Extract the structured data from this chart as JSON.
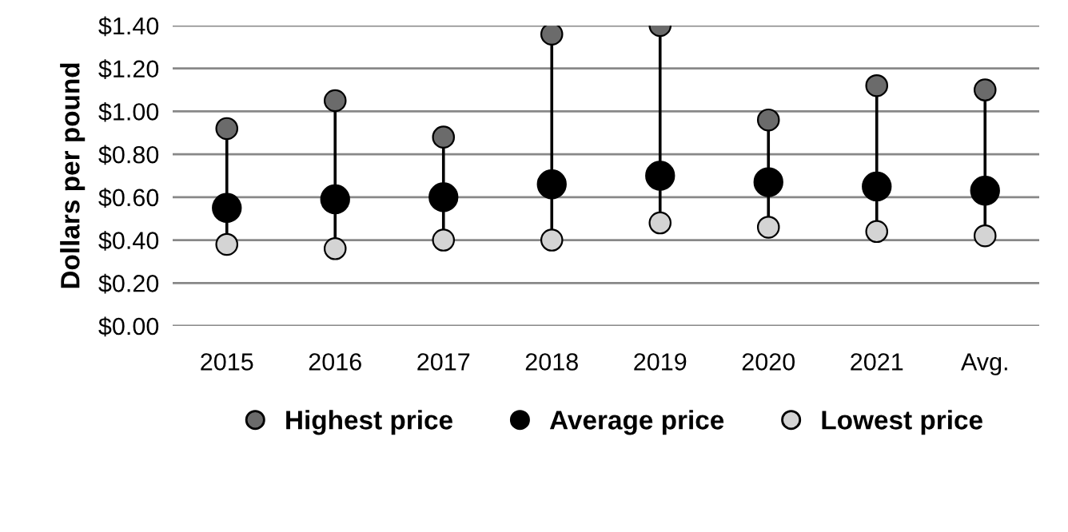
{
  "chart_data": {
    "type": "scatter",
    "ylabel": "Dollars per pound",
    "categories": [
      "2015",
      "2016",
      "2017",
      "2018",
      "2019",
      "2020",
      "2021",
      "Avg."
    ],
    "series": [
      {
        "name": "Highest price",
        "color": "#6b6b6b",
        "values": [
          0.92,
          1.05,
          0.88,
          1.36,
          1.4,
          0.96,
          1.12,
          1.1
        ]
      },
      {
        "name": "Average price",
        "color": "#000000",
        "values": [
          0.55,
          0.59,
          0.6,
          0.66,
          0.7,
          0.67,
          0.65,
          0.63
        ]
      },
      {
        "name": "Lowest price",
        "color": "#d4d4d4",
        "values": [
          0.38,
          0.36,
          0.4,
          0.4,
          0.48,
          0.46,
          0.44,
          0.42
        ]
      }
    ],
    "ylim": [
      0,
      1.4
    ],
    "yticks": [
      {
        "value": 0,
        "label": "$0.00"
      },
      {
        "value": 0.2,
        "label": "$0.20"
      },
      {
        "value": 0.4,
        "label": "$0.40"
      },
      {
        "value": 0.6,
        "label": "$0.60"
      },
      {
        "value": 0.8,
        "label": "$0.80"
      },
      {
        "value": 1.0,
        "label": "$1.00"
      },
      {
        "value": 1.2,
        "label": "$1.20"
      },
      {
        "value": 1.4,
        "label": "$1.40"
      }
    ],
    "grid": "y",
    "legend": "bottom",
    "marker": "circle"
  }
}
